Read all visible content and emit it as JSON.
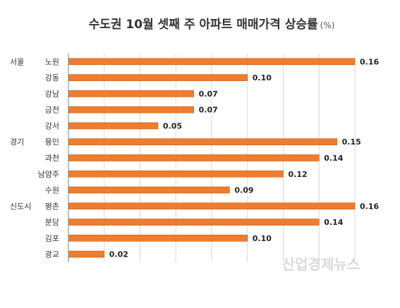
{
  "chart_data": {
    "type": "bar",
    "orientation": "horizontal",
    "title": "수도권 10월 셋째 주 아파트 매매가격 상승률",
    "title_unit": "(%)",
    "groups": [
      {
        "name": "서울",
        "categories": [
          "노원",
          "강동",
          "강남",
          "금천",
          "강서"
        ]
      },
      {
        "name": "경기",
        "categories": [
          "용인",
          "과천",
          "남양주",
          "수원"
        ]
      },
      {
        "name": "신도시",
        "categories": [
          "평촌",
          "분당",
          "김포",
          "광교"
        ]
      }
    ],
    "categories": [
      "노원",
      "강동",
      "강남",
      "금천",
      "강서",
      "용인",
      "과천",
      "남양주",
      "수원",
      "평촌",
      "분당",
      "김포",
      "광교"
    ],
    "values": [
      0.16,
      0.1,
      0.07,
      0.07,
      0.05,
      0.15,
      0.14,
      0.12,
      0.09,
      0.16,
      0.14,
      0.1,
      0.02
    ],
    "value_labels": [
      "0.16",
      "0.10",
      "0.07",
      "0.07",
      "0.05",
      "0.15",
      "0.14",
      "0.12",
      "0.09",
      "0.16",
      "0.14",
      "0.10",
      "0.02"
    ],
    "xlim": [
      0,
      0.16
    ],
    "grid": true,
    "bar_color": "#ED7D31",
    "bar_border_color": "#C55A11"
  },
  "watermark": "산업경제뉴스"
}
